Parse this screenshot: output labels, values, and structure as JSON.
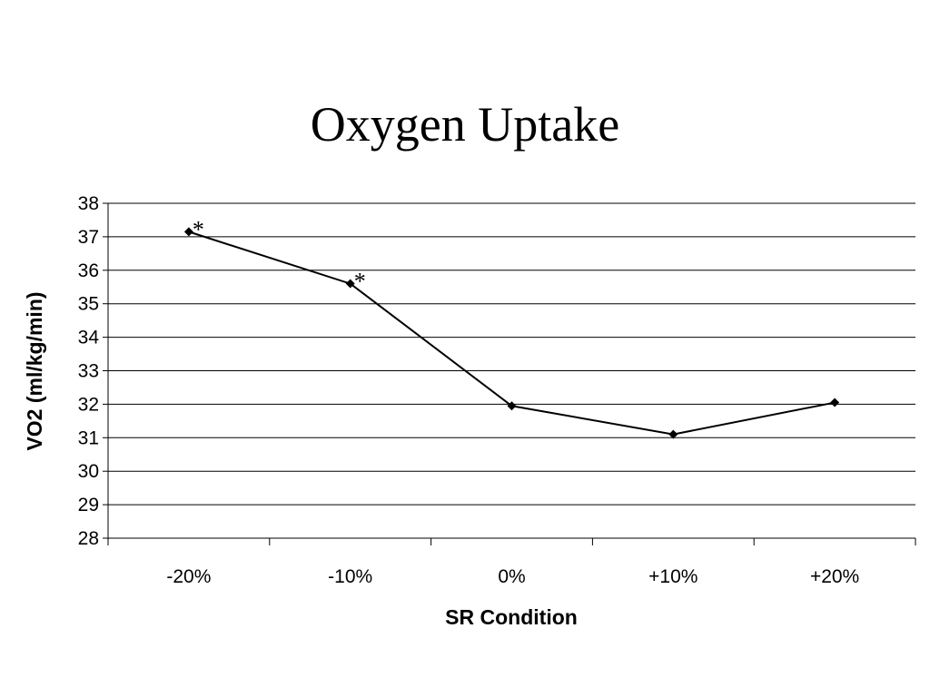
{
  "chart_data": {
    "type": "line",
    "title": "Oxygen Uptake",
    "xlabel": "SR Condition",
    "ylabel": "VO2 (ml/kg/min)",
    "categories": [
      "-20%",
      "-10%",
      "0%",
      "+10%",
      "+20%"
    ],
    "series": [
      {
        "values": [
          37.15,
          35.6,
          31.95,
          31.1,
          32.05
        ]
      }
    ],
    "annotations": [
      {
        "category": "-20%",
        "text": "*"
      },
      {
        "category": "-10%",
        "text": "*"
      }
    ],
    "ylim": [
      28,
      38
    ],
    "yticks": [
      28,
      29,
      30,
      31,
      32,
      33,
      34,
      35,
      36,
      37,
      38
    ],
    "grid": true,
    "legend": "none",
    "colors": {
      "line": "#000000",
      "grid": "#000000",
      "marker": "#000000"
    }
  }
}
